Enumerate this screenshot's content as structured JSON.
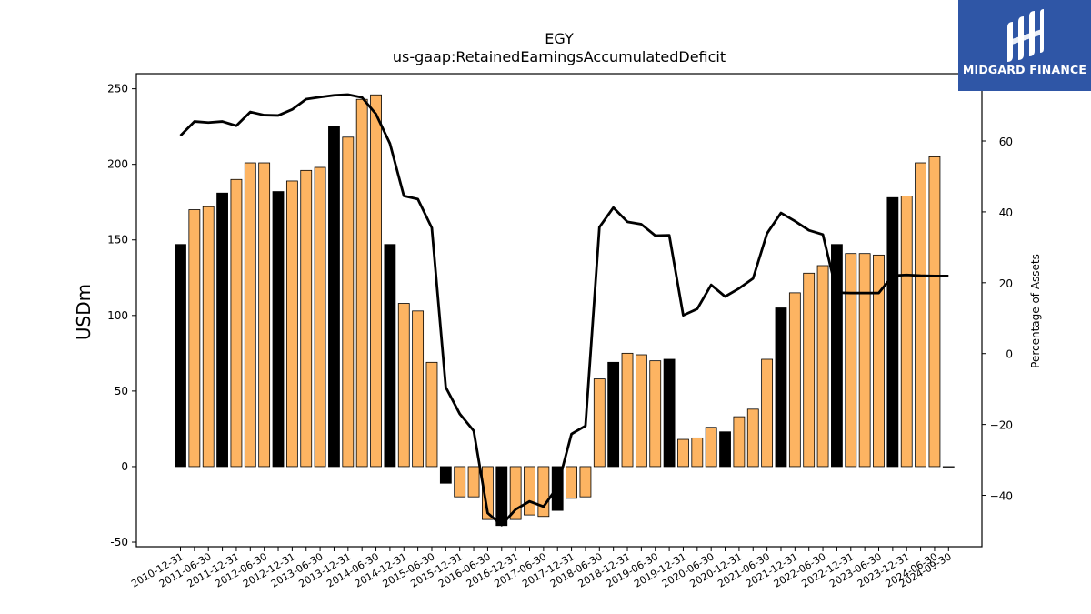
{
  "logo": {
    "text": "MIDGARD FINANCE",
    "color": "#2f56a6"
  },
  "chart_data": {
    "type": "bar",
    "title": "EGY",
    "subtitle": "us-gaap:RetainedEarningsAccumulatedDeficit",
    "ylabel": "USDm",
    "y2label": "Percentage of Assets",
    "ylim": [
      -53,
      260
    ],
    "y2lim": [
      -54.5,
      79
    ],
    "yticks": [
      -50,
      0,
      50,
      100,
      150,
      200,
      250
    ],
    "y2ticks": [
      -40,
      -20,
      0,
      20,
      40,
      60
    ],
    "grid": false,
    "colors": {
      "fy_bar": "#000000",
      "quarter_bar": "#fdb462",
      "line": "#000000"
    },
    "categories": [
      "2010-12-31",
      "2011-03-31",
      "2011-06-30",
      "2011-09-30",
      "2011-12-31",
      "2012-03-31",
      "2012-06-30",
      "2012-09-30",
      "2012-12-31",
      "2013-03-31",
      "2013-06-30",
      "2013-09-30",
      "2013-12-31",
      "2014-03-31",
      "2014-06-30",
      "2014-09-30",
      "2014-12-31",
      "2015-03-31",
      "2015-06-30",
      "2015-09-30",
      "2015-12-31",
      "2016-03-31",
      "2016-06-30",
      "2016-09-30",
      "2016-12-31",
      "2017-03-31",
      "2017-06-30",
      "2017-09-30",
      "2017-12-31",
      "2018-03-31",
      "2018-06-30",
      "2018-09-30",
      "2018-12-31",
      "2019-03-31",
      "2019-06-30",
      "2019-09-30",
      "2019-12-31",
      "2020-03-31",
      "2020-06-30",
      "2020-09-30",
      "2020-12-31",
      "2021-03-31",
      "2021-06-30",
      "2021-09-30",
      "2021-12-31",
      "2022-03-31",
      "2022-06-30",
      "2022-09-30",
      "2022-12-31",
      "2023-03-31",
      "2023-06-30",
      "2023-09-30",
      "2023-12-31",
      "2024-03-31",
      "2024-06-30",
      "2024-09-30"
    ],
    "xtick_labels": [
      "2010-12-31",
      "2011-06-30",
      "2011-12-31",
      "2012-06-30",
      "2012-12-31",
      "2013-06-30",
      "2013-12-31",
      "2014-06-30",
      "2014-12-31",
      "2015-06-30",
      "2015-12-31",
      "2016-06-30",
      "2016-12-31",
      "2017-06-30",
      "2017-12-31",
      "2018-06-30",
      "2018-12-31",
      "2019-06-30",
      "2019-12-31",
      "2020-06-30",
      "2020-12-31",
      "2021-06-30",
      "2021-12-31",
      "2022-06-30",
      "2022-12-31",
      "2023-06-30",
      "2023-12-31",
      "2024-06-30",
      "2024-09-30"
    ],
    "is_fiscal_year_end": [
      true,
      false,
      false,
      true,
      false,
      false,
      false,
      true,
      false,
      false,
      false,
      true,
      false,
      false,
      false,
      true,
      false,
      false,
      false,
      true,
      false,
      false,
      false,
      true,
      false,
      false,
      false,
      true,
      false,
      false,
      false,
      true,
      false,
      false,
      false,
      true,
      false,
      false,
      false,
      true,
      false,
      false,
      false,
      true,
      false,
      false,
      false,
      true,
      false,
      false,
      false,
      true,
      false,
      false,
      false,
      false
    ],
    "series": [
      {
        "name": "USDm",
        "type": "bar",
        "values": [
          147,
          170,
          172,
          181,
          190,
          201,
          201,
          182,
          189,
          196,
          198,
          225,
          218,
          243,
          246,
          147,
          108,
          103,
          69,
          -11,
          -20,
          -20,
          -35,
          -39,
          -35,
          -32,
          -33,
          -29,
          -21,
          -20,
          58,
          69,
          75,
          74,
          70,
          71,
          18,
          19,
          26,
          23,
          33,
          38,
          71,
          105,
          115,
          128,
          133,
          147,
          141,
          141,
          140,
          178,
          179,
          201,
          205,
          0
        ]
      },
      {
        "name": "Percentage of Assets",
        "type": "line",
        "values": [
          61.5,
          65.5,
          65.2,
          65.5,
          64.3,
          68.2,
          67.3,
          67.2,
          68.9,
          71.8,
          72.4,
          72.9,
          73.1,
          72.3,
          67.6,
          59.3,
          44.5,
          43.6,
          35.5,
          -9.5,
          -17,
          -21.8,
          -45,
          -48.4,
          -44,
          -41.7,
          -43.2,
          -37.6,
          -22.7,
          -20.4,
          35.7,
          41.2,
          37.2,
          36.5,
          33.3,
          33.4,
          10.8,
          12.6,
          19.4,
          16.1,
          18.4,
          21.2,
          33.9,
          39.7,
          37.4,
          34.8,
          33.6,
          17.2,
          17.1,
          17.1,
          17.1,
          22,
          22.2,
          22,
          21.9,
          21.9
        ]
      }
    ]
  }
}
